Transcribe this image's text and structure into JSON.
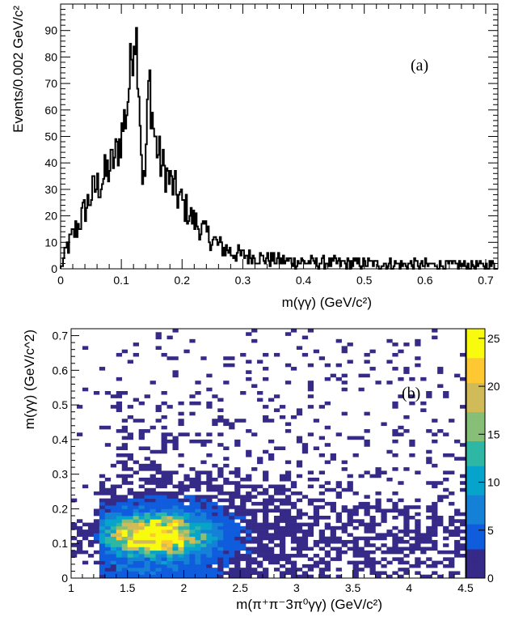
{
  "chart_data": [
    {
      "type": "histogram",
      "panel_label": "(a)",
      "xlabel": "m(γγ) (GeV/c²)",
      "ylabel": "Events/0.002 GeV/c²",
      "xlim": [
        0,
        0.72
      ],
      "ylim": [
        0,
        100
      ],
      "xticks": [
        "0",
        "0.1",
        "0.2",
        "0.3",
        "0.4",
        "0.5",
        "0.6",
        "0.7"
      ],
      "yticks": [
        "0",
        "10",
        "20",
        "30",
        "40",
        "50",
        "60",
        "70",
        "80",
        "90"
      ],
      "bin_width": 0.002,
      "shape_profile": [
        [
          0.0,
          0
        ],
        [
          0.005,
          3
        ],
        [
          0.01,
          8
        ],
        [
          0.02,
          12
        ],
        [
          0.03,
          17
        ],
        [
          0.04,
          22
        ],
        [
          0.05,
          28
        ],
        [
          0.06,
          31
        ],
        [
          0.07,
          34
        ],
        [
          0.08,
          38
        ],
        [
          0.09,
          42
        ],
        [
          0.1,
          50
        ],
        [
          0.11,
          62
        ],
        [
          0.116,
          78
        ],
        [
          0.122,
          92
        ],
        [
          0.126,
          85
        ],
        [
          0.13,
          65
        ],
        [
          0.134,
          38
        ],
        [
          0.138,
          30
        ],
        [
          0.142,
          52
        ],
        [
          0.146,
          74
        ],
        [
          0.15,
          60
        ],
        [
          0.156,
          48
        ],
        [
          0.165,
          40
        ],
        [
          0.18,
          33
        ],
        [
          0.2,
          25
        ],
        [
          0.22,
          18
        ],
        [
          0.24,
          13
        ],
        [
          0.26,
          9
        ],
        [
          0.28,
          6.5
        ],
        [
          0.3,
          5
        ],
        [
          0.35,
          3.5
        ],
        [
          0.4,
          2.5
        ],
        [
          0.5,
          2
        ],
        [
          0.6,
          1.6
        ],
        [
          0.72,
          1.2
        ]
      ]
    },
    {
      "type": "heatmap",
      "panel_label": "(b)",
      "xlabel": "m(π⁺π⁻3π⁰γγ) (GeV/c²)",
      "ylabel": "m(γγ) (GeV/c^2)",
      "xlim": [
        1,
        4.5
      ],
      "ylim": [
        0,
        0.72
      ],
      "xticks": [
        "1",
        "1.5",
        "2",
        "2.5",
        "3",
        "3.5",
        "4",
        "4.5"
      ],
      "yticks": [
        "0",
        "0.1",
        "0.2",
        "0.3",
        "0.4",
        "0.5",
        "0.6",
        "0.7"
      ],
      "bin_width_x": 0.05,
      "bin_width_y": 0.01,
      "colorbar_range": [
        0,
        26
      ],
      "colorbar_ticks": [
        "0",
        "5",
        "10",
        "15",
        "20",
        "25"
      ],
      "colormap": [
        "#352a87",
        "#0f5cdd",
        "#1481d6",
        "#06a4ca",
        "#2eb7a4",
        "#87bf77",
        "#d1bb59",
        "#fec832",
        "#f9fb0e"
      ],
      "hotspot": {
        "x": 1.75,
        "y": 0.125,
        "max_count": 26
      }
    }
  ]
}
